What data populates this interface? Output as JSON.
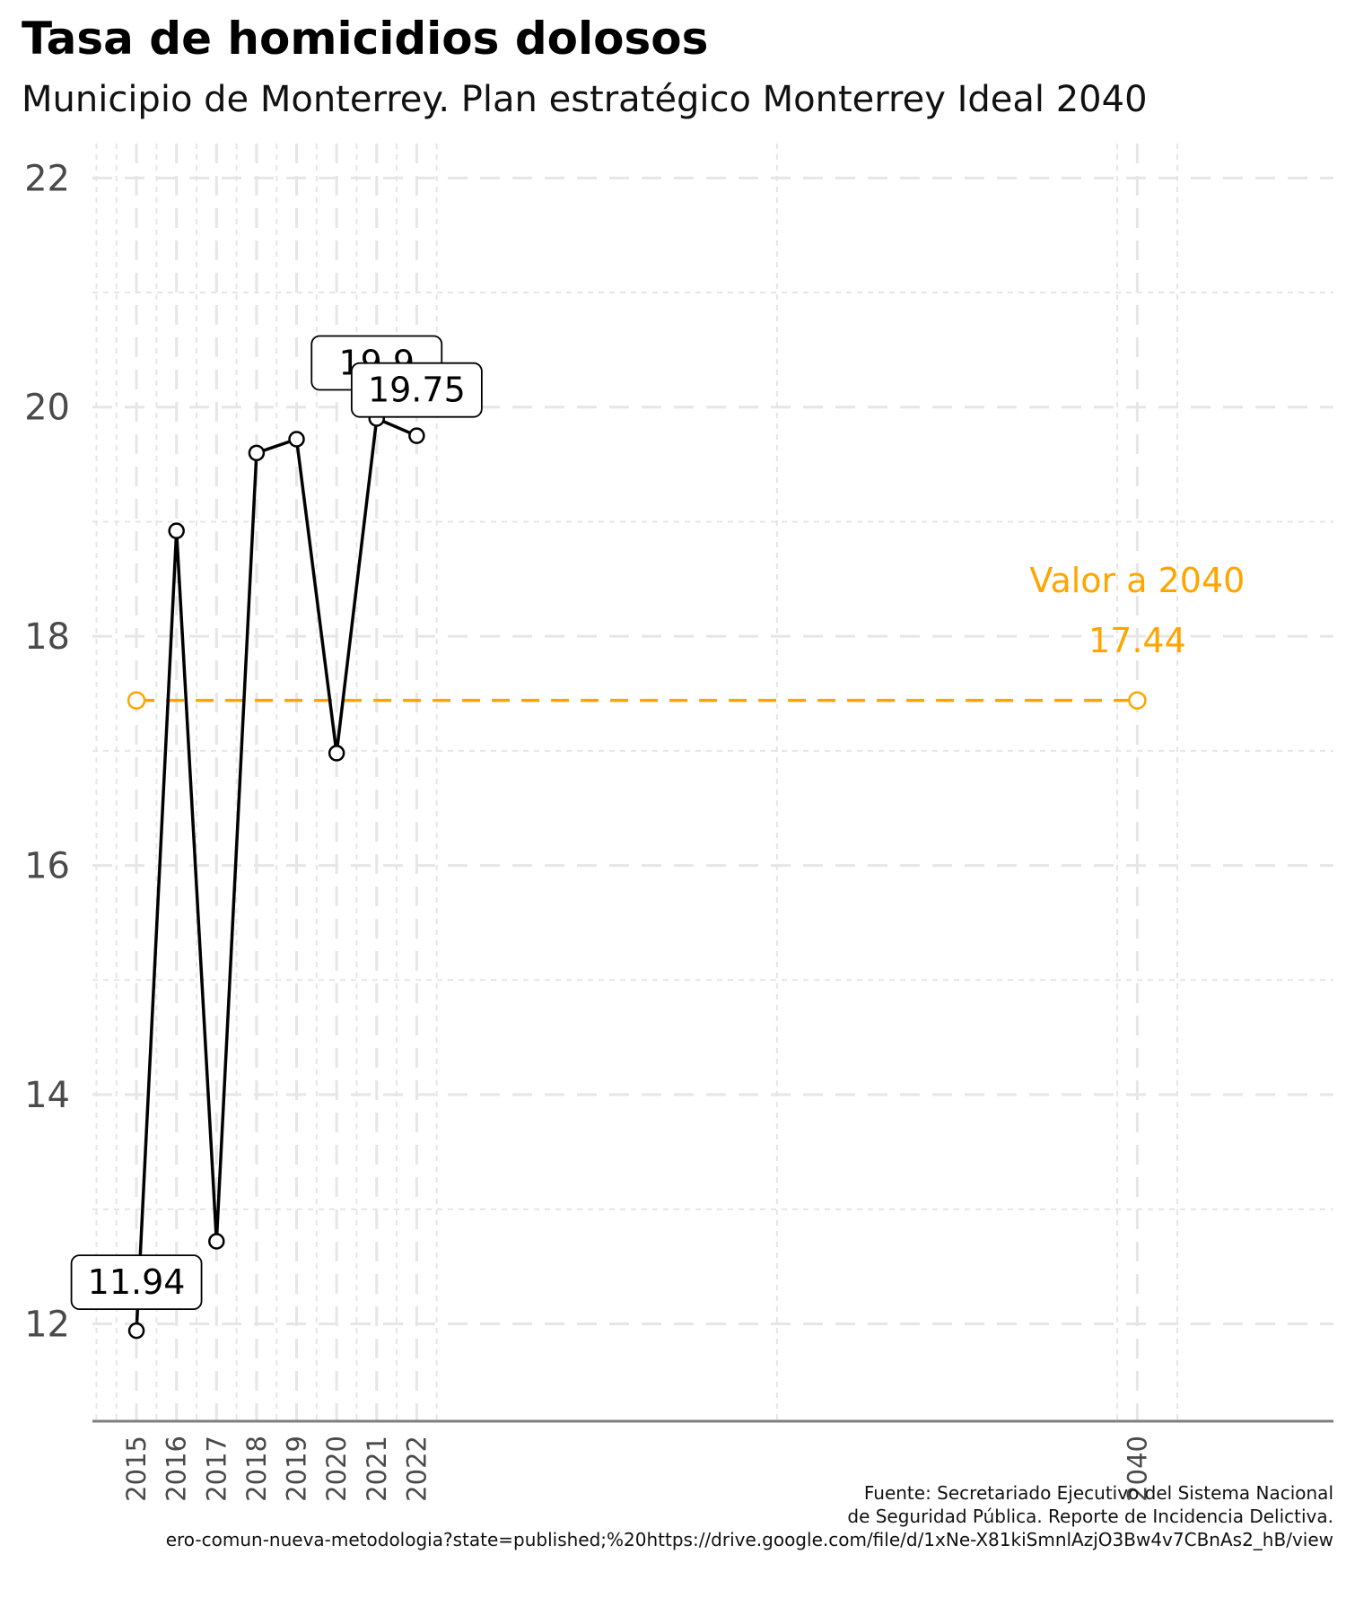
{
  "header": {
    "title": "Tasa de homicidios dolosos",
    "subtitle": "Municipio de Monterrey. Plan estratégico Monterrey Ideal 2040"
  },
  "caption": {
    "line1": "Fuente: Secretariado Ejecutivo del Sistema Nacional",
    "line2": "de Seguridad Pública. Reporte de Incidencia Delictiva.",
    "line3": "ero-comun-nueva-metodologia?state=published;%20https://drive.google.com/file/d/1xNe-X81kiSmnlAzjO3Bw4v7CBnAs2_hB/view"
  },
  "chart_data": {
    "type": "line",
    "title": "Tasa de homicidios dolosos",
    "subtitle": "Municipio de Monterrey. Plan estratégico Monterrey Ideal 2040",
    "x": [
      2015,
      2016,
      2017,
      2018,
      2019,
      2020,
      2021,
      2022
    ],
    "x_tick_labels": [
      "2015",
      "2016",
      "2017",
      "2018",
      "2019",
      "2020",
      "2021",
      "2022",
      "2040"
    ],
    "series": [
      {
        "values": [
          11.94,
          18.92,
          12.72,
          19.6,
          19.72,
          16.98,
          19.9,
          19.75
        ],
        "color": "#000000"
      }
    ],
    "point_labels": [
      {
        "x": 2015,
        "text": "11.94"
      },
      {
        "x": 2021,
        "text": "19.9"
      },
      {
        "x": 2022,
        "text": "19.75"
      }
    ],
    "target": {
      "label": "Valor a 2040",
      "value_text": "17.44",
      "value": 17.44,
      "x_start": 2015,
      "x_end": 2040,
      "color": "#FFA500"
    },
    "y_ticks": [
      12,
      14,
      16,
      18,
      20,
      22
    ],
    "ylim": [
      11.15,
      22.3
    ],
    "xlim": [
      2013.9,
      2044.9
    ],
    "grid": true,
    "legend": "none",
    "axis_color": "#7f7f7f",
    "grid_color": "#e6e6e6"
  }
}
